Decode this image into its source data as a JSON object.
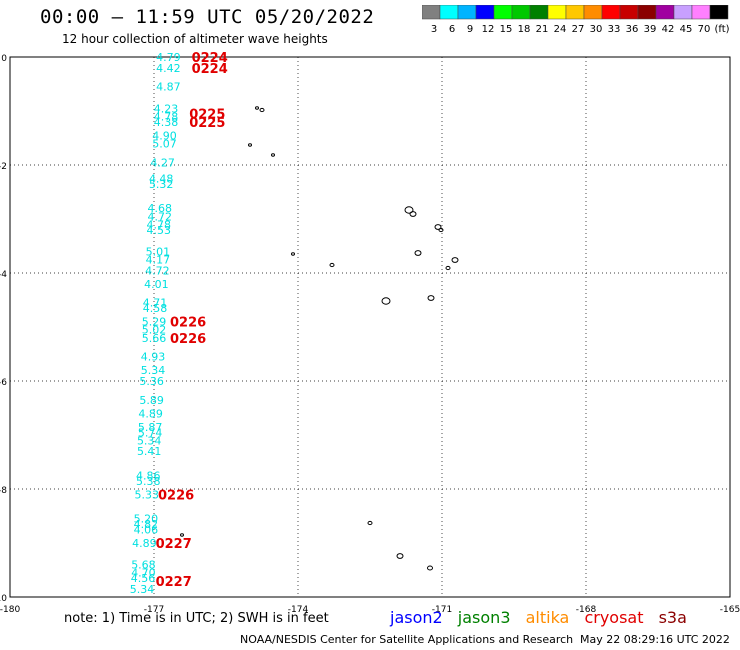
{
  "header": {
    "title": "00:00 – 11:59 UTC 05/20/2022",
    "subtitle": "12 hour collection of altimeter wave heights"
  },
  "colorbar": {
    "colors": [
      "#808080",
      "#00ffff",
      "#00b4ff",
      "#0000ff",
      "#00ff00",
      "#00c800",
      "#008000",
      "#ffff00",
      "#ffc800",
      "#ff8c00",
      "#ff0000",
      "#c80000",
      "#8b0000",
      "#a000a0",
      "#c8a0ff",
      "#ff80ff",
      "#000000"
    ],
    "labels": [
      "3",
      "6",
      "9",
      "12",
      "15",
      "18",
      "21",
      "24",
      "27",
      "30",
      "33",
      "36",
      "39",
      "42",
      "45",
      "70",
      "(ft)"
    ]
  },
  "chart_data": {
    "type": "scatter",
    "xlim": [
      -180,
      -165
    ],
    "ylim": [
      -10,
      0
    ],
    "x_ticks": [
      "-180",
      "-177",
      "-174",
      "-171",
      "-168",
      "-165"
    ],
    "y_ticks": [
      "0",
      "-2",
      "-4",
      "-6",
      "-8",
      "-10"
    ],
    "grid": true,
    "swh_points": [
      {
        "lon": -176.7,
        "lat": 0.0,
        "label": "4.79"
      },
      {
        "lon": -176.7,
        "lat": -0.2,
        "label": "4.42"
      },
      {
        "lon": -176.7,
        "lat": -0.55,
        "label": "4.87"
      },
      {
        "lon": -176.75,
        "lat": -0.95,
        "label": "4.23"
      },
      {
        "lon": -176.75,
        "lat": -1.1,
        "label": "4.78"
      },
      {
        "lon": -176.75,
        "lat": -1.2,
        "label": "4.38"
      },
      {
        "lon": -176.78,
        "lat": -1.45,
        "label": "4.90"
      },
      {
        "lon": -176.78,
        "lat": -1.6,
        "label": "5.07"
      },
      {
        "lon": -176.82,
        "lat": -1.95,
        "label": "4.27"
      },
      {
        "lon": -176.85,
        "lat": -2.25,
        "label": "4.48"
      },
      {
        "lon": -176.85,
        "lat": -2.35,
        "label": "5.32"
      },
      {
        "lon": -176.88,
        "lat": -2.8,
        "label": "4.68"
      },
      {
        "lon": -176.88,
        "lat": -2.95,
        "label": "4.72"
      },
      {
        "lon": -176.9,
        "lat": -3.1,
        "label": "4.78"
      },
      {
        "lon": -176.9,
        "lat": -3.2,
        "label": "4.53"
      },
      {
        "lon": -176.92,
        "lat": -3.6,
        "label": "5.01"
      },
      {
        "lon": -176.92,
        "lat": -3.75,
        "label": "4.17"
      },
      {
        "lon": -176.93,
        "lat": -3.95,
        "label": "4.72"
      },
      {
        "lon": -176.95,
        "lat": -4.2,
        "label": "4.01"
      },
      {
        "lon": -176.98,
        "lat": -4.55,
        "label": "4.71"
      },
      {
        "lon": -176.98,
        "lat": -4.65,
        "label": "4.58"
      },
      {
        "lon": -177.0,
        "lat": -4.9,
        "label": "5.29"
      },
      {
        "lon": -177.0,
        "lat": -5.05,
        "label": "5.02"
      },
      {
        "lon": -177.0,
        "lat": -5.2,
        "label": "5.66"
      },
      {
        "lon": -177.02,
        "lat": -5.55,
        "label": "4.93"
      },
      {
        "lon": -177.02,
        "lat": -5.8,
        "label": "5.34"
      },
      {
        "lon": -177.05,
        "lat": -6.0,
        "label": "5.36"
      },
      {
        "lon": -177.05,
        "lat": -6.35,
        "label": "5.89"
      },
      {
        "lon": -177.07,
        "lat": -6.6,
        "label": "4.89"
      },
      {
        "lon": -177.08,
        "lat": -6.85,
        "label": "5.87"
      },
      {
        "lon": -177.08,
        "lat": -6.95,
        "label": "5.74"
      },
      {
        "lon": -177.1,
        "lat": -7.1,
        "label": "5.34"
      },
      {
        "lon": -177.1,
        "lat": -7.3,
        "label": "5.41"
      },
      {
        "lon": -177.12,
        "lat": -7.75,
        "label": "4.86"
      },
      {
        "lon": -177.12,
        "lat": -7.85,
        "label": "5.38"
      },
      {
        "lon": -177.15,
        "lat": -8.1,
        "label": "5.33"
      },
      {
        "lon": -177.17,
        "lat": -8.55,
        "label": "5.20"
      },
      {
        "lon": -177.17,
        "lat": -8.65,
        "label": "4.82"
      },
      {
        "lon": -177.17,
        "lat": -8.75,
        "label": "4.06"
      },
      {
        "lon": -177.2,
        "lat": -9.0,
        "label": "4.89"
      },
      {
        "lon": -177.22,
        "lat": -9.4,
        "label": "5.68"
      },
      {
        "lon": -177.22,
        "lat": -9.55,
        "label": "4.70"
      },
      {
        "lon": -177.23,
        "lat": -9.65,
        "label": "4.56"
      },
      {
        "lon": -177.25,
        "lat": -9.85,
        "label": "5.34"
      }
    ],
    "time_labels": [
      {
        "lon": -176.3,
        "lat": 0.0,
        "label": "0224"
      },
      {
        "lon": -176.3,
        "lat": -0.2,
        "label": "0224"
      },
      {
        "lon": -176.35,
        "lat": -1.05,
        "label": "0225"
      },
      {
        "lon": -176.35,
        "lat": -1.2,
        "label": "0225"
      },
      {
        "lon": -176.75,
        "lat": -4.9,
        "label": "0226"
      },
      {
        "lon": -176.75,
        "lat": -5.2,
        "label": "0226"
      },
      {
        "lon": -177.0,
        "lat": -8.1,
        "label": "0226"
      },
      {
        "lon": -177.05,
        "lat": -9.0,
        "label": "0227"
      },
      {
        "lon": -177.05,
        "lat": -9.7,
        "label": "0227"
      }
    ],
    "swh_color": "#00e0e0",
    "time_color": "#e00000"
  },
  "footer": {
    "note": "note: 1) Time is in UTC; 2) SWH is in feet",
    "satellites": [
      {
        "name": "jason2",
        "color": "#0000ff"
      },
      {
        "name": "jason3",
        "color": "#008000"
      },
      {
        "name": "altika",
        "color": "#ff8c00"
      },
      {
        "name": "cryosat",
        "color": "#e00000"
      },
      {
        "name": "s3a",
        "color": "#8b0000"
      }
    ],
    "credit": "NOAA/NESDIS Center for Satellite Applications and Research",
    "timestamp": "May 22 08:29:16 UTC 2022"
  }
}
